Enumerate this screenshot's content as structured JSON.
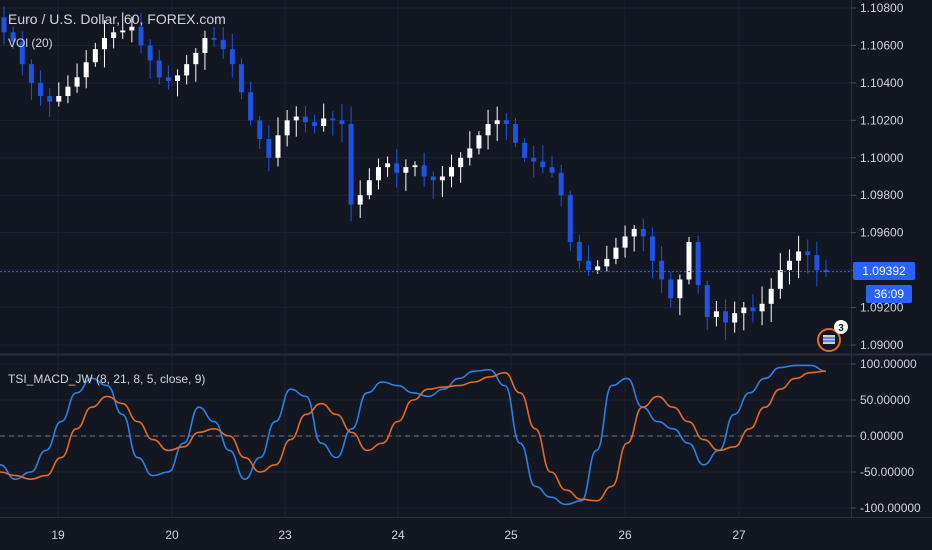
{
  "header": {
    "symbol_title": "Euro / U.S. Dollar, 60, FOREX.com",
    "indicator_label": "VOl (20)"
  },
  "colors": {
    "background": "#131722",
    "grid": "#1e2330",
    "up_candle": "#ffffff",
    "down_candle": "#1e53e5",
    "price_line": "#2962ff",
    "tsi_line": "#2f7fe0",
    "signal_line": "#e06a28",
    "text": "#d1d4dc",
    "badge_ring": "#e06a28"
  },
  "price_scale": {
    "ticks": [
      "1.10800",
      "1.10600",
      "1.10400",
      "1.10200",
      "1.10000",
      "1.09800",
      "1.09600",
      "1.09400",
      "1.09200",
      "1.09000"
    ],
    "current_price": "1.09392",
    "countdown": "36:09"
  },
  "oscillator_scale": {
    "ticks": [
      "100.00000",
      "50.00000",
      "0.00000",
      "-50.00000",
      "-100.00000"
    ]
  },
  "time_axis": {
    "ticks": [
      "19",
      "20",
      "23",
      "24",
      "25",
      "26",
      "27"
    ]
  },
  "badge": {
    "count": "3",
    "icon": "flag-icon"
  },
  "chart_data": [
    {
      "type": "candlestick",
      "title": "Euro / U.S. Dollar, 60, FOREX.com",
      "ylim": [
        1.0897,
        1.109
      ],
      "x": [
        "19",
        "20",
        "23",
        "24",
        "25",
        "26",
        "27"
      ],
      "close_series": [
        1.1067,
        1.1062,
        1.105,
        1.104,
        1.1033,
        1.103,
        1.1033,
        1.1038,
        1.1043,
        1.1051,
        1.1058,
        1.1064,
        1.1067,
        1.1068,
        1.107,
        1.106,
        1.1052,
        1.1043,
        1.1041,
        1.1044,
        1.105,
        1.1056,
        1.1064,
        1.1063,
        1.1058,
        1.105,
        1.1035,
        1.102,
        1.101,
        1.1,
        1.1012,
        1.102,
        1.1022,
        1.1019,
        1.1017,
        1.1021,
        1.102,
        1.1018,
        1.0975,
        1.098,
        1.0988,
        1.0995,
        1.0997,
        1.0992,
        1.0995,
        1.0996,
        1.099,
        1.0988,
        1.099,
        1.0995,
        1.1,
        1.1005,
        1.1012,
        1.1018,
        1.102,
        1.1018,
        1.1008,
        1.1,
        1.0998,
        1.0995,
        1.0992,
        1.098,
        1.0955,
        1.0945,
        1.094,
        1.0942,
        1.0946,
        1.0952,
        1.0958,
        1.0962,
        1.0958,
        1.0945,
        1.0935,
        1.0925,
        1.0935,
        1.0955,
        1.0932,
        1.0915,
        1.0918,
        1.0912,
        1.0917,
        1.092,
        1.0918,
        1.0922,
        1.093,
        1.094,
        1.0945,
        1.095,
        1.0948,
        1.094,
        1.0939
      ],
      "current_price": 1.09392
    },
    {
      "type": "line",
      "title": "TSI_MACD_JW (8, 21, 8, 5, close, 9)",
      "ylim": [
        -100,
        100
      ],
      "zero_line": true,
      "series": [
        {
          "values": [
            -40,
            -60,
            -50,
            -20,
            20,
            60,
            80,
            70,
            30,
            -30,
            -55,
            -50,
            -10,
            40,
            20,
            -20,
            -60,
            -30,
            20,
            65,
            55,
            -10,
            -30,
            10,
            60,
            75,
            70,
            60,
            55,
            65,
            80,
            90,
            92,
            70,
            -10,
            -70,
            -85,
            -95,
            -90,
            -20,
            70,
            80,
            40,
            20,
            10,
            -10,
            -40,
            -20,
            30,
            60,
            80,
            95,
            98,
            98,
            90
          ]
        },
        {
          "values": [
            -50,
            -55,
            -60,
            -55,
            -30,
            10,
            40,
            55,
            45,
            20,
            -5,
            -20,
            -15,
            5,
            10,
            0,
            -30,
            -50,
            -40,
            -5,
            30,
            45,
            30,
            5,
            -20,
            -10,
            20,
            50,
            65,
            68,
            70,
            75,
            82,
            88,
            60,
            10,
            -50,
            -75,
            -88,
            -90,
            -70,
            -10,
            40,
            55,
            40,
            20,
            -5,
            -20,
            -15,
            10,
            40,
            65,
            80,
            88,
            90
          ]
        }
      ]
    }
  ]
}
